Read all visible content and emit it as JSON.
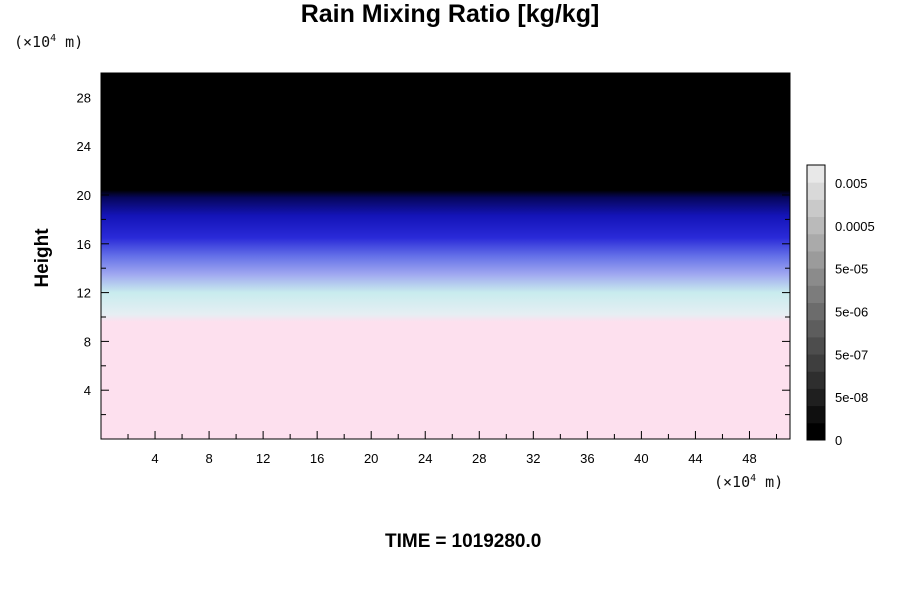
{
  "chart_data": {
    "type": "heatmap",
    "title": "Rain Mixing Ratio [kg/kg]",
    "ylabel": "Height",
    "y_unit": "(×10",
    "y_unit_exp": "4",
    "y_unit_tail": " m)",
    "x_unit": "(×10",
    "x_unit_exp": "4",
    "x_unit_tail": " m)",
    "time_label": "TIME",
    "time_sep": "=",
    "time_value": "1019280.0",
    "xlim": [
      0,
      51
    ],
    "ylim": [
      0,
      30
    ],
    "x_ticks": [
      4,
      8,
      12,
      16,
      20,
      24,
      28,
      32,
      36,
      40,
      44,
      48
    ],
    "y_ticks": [
      4,
      8,
      12,
      16,
      20,
      24,
      28
    ],
    "x_tick_labels": [
      "4",
      "8",
      "12",
      "16",
      "20",
      "24",
      "28",
      "32",
      "36",
      "40",
      "44",
      "48"
    ],
    "y_tick_labels": [
      "4",
      "8",
      "12",
      "16",
      "20",
      "24",
      "28"
    ],
    "colorbar": {
      "labels": [
        "0",
        "5e-08",
        "5e-07",
        "5e-06",
        "5e-05",
        "0.0005",
        "0.005"
      ],
      "levels": 16
    },
    "field_bands": [
      {
        "y_from": 0,
        "y_to": 10,
        "color": "#fde0ee",
        "description": "pink"
      },
      {
        "y_from": 10,
        "y_to": 12.5,
        "color": "#d6f0f0",
        "description": "cyan"
      },
      {
        "y_from": 12.5,
        "y_to": 15,
        "color": "#7a86f0",
        "description": "light blue"
      },
      {
        "y_from": 15,
        "y_to": 19.5,
        "color": "#1a1ad8",
        "description": "blue"
      },
      {
        "y_from": 19.5,
        "y_to": 30,
        "color": "#000000",
        "description": "black"
      }
    ]
  }
}
